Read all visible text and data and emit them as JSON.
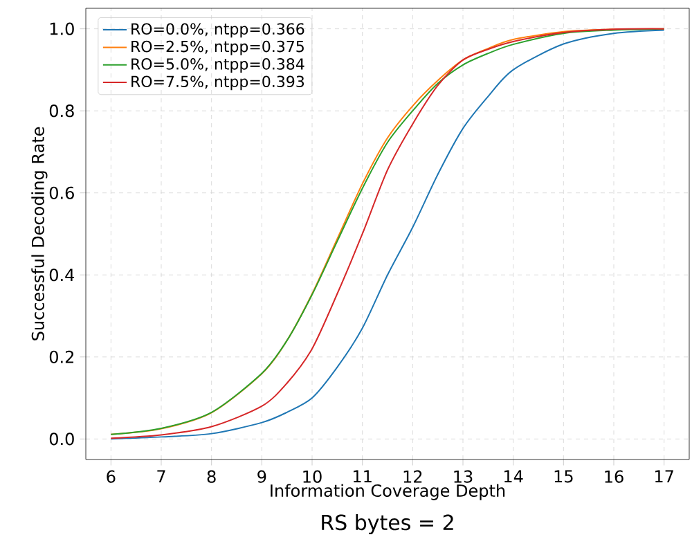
{
  "chart_data": {
    "type": "line",
    "title": "RS bytes = 2",
    "xlabel": "Information Coverage Depth",
    "ylabel": "Successful Decoding Rate",
    "x": [
      6,
      7,
      8,
      9,
      9.5,
      10,
      10.5,
      11,
      11.5,
      12,
      12.5,
      13,
      13.5,
      14,
      15,
      16,
      17
    ],
    "series": [
      {
        "name": "RO=0.0%, ntpp=0.366",
        "color": "#1f77b4",
        "values": [
          0.0,
          0.005,
          0.013,
          0.04,
          0.065,
          0.1,
          0.175,
          0.27,
          0.4,
          0.516,
          0.645,
          0.757,
          0.835,
          0.9,
          0.963,
          0.989,
          0.997
        ]
      },
      {
        "name": "RO=2.5%, ntpp=0.375",
        "color": "#ff7f0e",
        "values": [
          0.011,
          0.025,
          0.064,
          0.159,
          0.24,
          0.354,
          0.488,
          0.622,
          0.734,
          0.812,
          0.874,
          0.924,
          0.952,
          0.974,
          0.993,
          0.999,
          1.0
        ]
      },
      {
        "name": "RO=5.0%, ntpp=0.384",
        "color": "#2ca02c",
        "values": [
          0.011,
          0.026,
          0.065,
          0.16,
          0.24,
          0.352,
          0.482,
          0.611,
          0.723,
          0.8,
          0.867,
          0.912,
          0.94,
          0.962,
          0.989,
          0.997,
          1.0
        ]
      },
      {
        "name": "RO=7.5%, ntpp=0.393",
        "color": "#d62728",
        "values": [
          0.002,
          0.01,
          0.03,
          0.08,
          0.136,
          0.22,
          0.354,
          0.5,
          0.656,
          0.768,
          0.862,
          0.924,
          0.95,
          0.969,
          0.991,
          0.999,
          1.0
        ]
      }
    ],
    "xlim": [
      5.5,
      17.5
    ],
    "ylim": [
      -0.05,
      1.05
    ],
    "xticks": [
      6,
      7,
      8,
      9,
      10,
      11,
      12,
      13,
      14,
      15,
      16,
      17
    ],
    "yticks": [
      {
        "value": 0,
        "label": "0.0"
      },
      {
        "value": 0.2,
        "label": "0.2"
      },
      {
        "value": 0.4,
        "label": "0.4"
      },
      {
        "value": 0.6,
        "label": "0.6"
      },
      {
        "value": 0.8,
        "label": "0.8"
      },
      {
        "value": 1.0,
        "label": "1.0"
      }
    ],
    "grid": true,
    "legend": "top left",
    "line_style": "solid",
    "marker": "none"
  }
}
